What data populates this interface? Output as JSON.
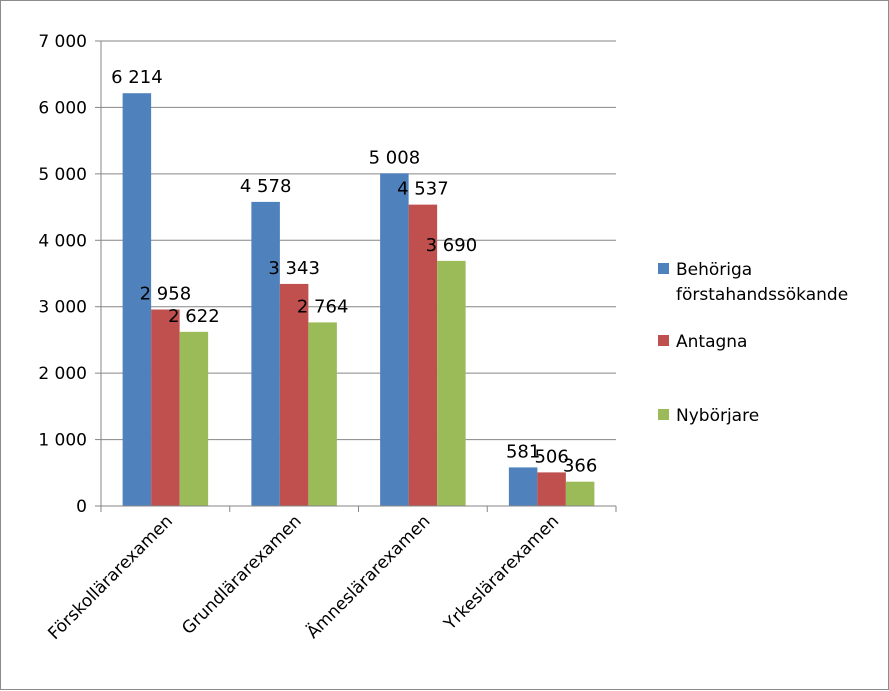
{
  "chart_data": {
    "type": "bar",
    "title": "",
    "xlabel": "",
    "ylabel": "",
    "ylim": [
      0,
      7000
    ],
    "yticks": [
      0,
      1000,
      2000,
      3000,
      4000,
      5000,
      6000,
      7000
    ],
    "ytick_labels": [
      "0",
      "1 000",
      "2 000",
      "3 000",
      "4 000",
      "5 000",
      "6 000",
      "7 000"
    ],
    "grid": true,
    "legend_position": "right",
    "categories": [
      "Förskollärarexamen",
      "Grundlärarexamen",
      "Ämneslärarexamen",
      "Yrkeslärarexamen"
    ],
    "series": [
      {
        "name": "Behöriga förstahandssökande",
        "name_lines": [
          "Behöriga",
          "förstahandssökande"
        ],
        "color": "#4f81bd",
        "values": [
          6214,
          4578,
          5008,
          581
        ],
        "labels": [
          "6 214",
          "4 578",
          "5 008",
          "581"
        ]
      },
      {
        "name": "Antagna",
        "name_lines": [
          "Antagna"
        ],
        "color": "#c0504d",
        "values": [
          2958,
          3343,
          4537,
          506
        ],
        "labels": [
          "2 958",
          "3 343",
          "4 537",
          "506"
        ]
      },
      {
        "name": "Nybörjare",
        "name_lines": [
          "Nybörjare"
        ],
        "color": "#9bbb59",
        "values": [
          2622,
          2764,
          3690,
          366
        ],
        "labels": [
          "2 622",
          "2 764",
          "3 690",
          "366"
        ]
      }
    ]
  }
}
